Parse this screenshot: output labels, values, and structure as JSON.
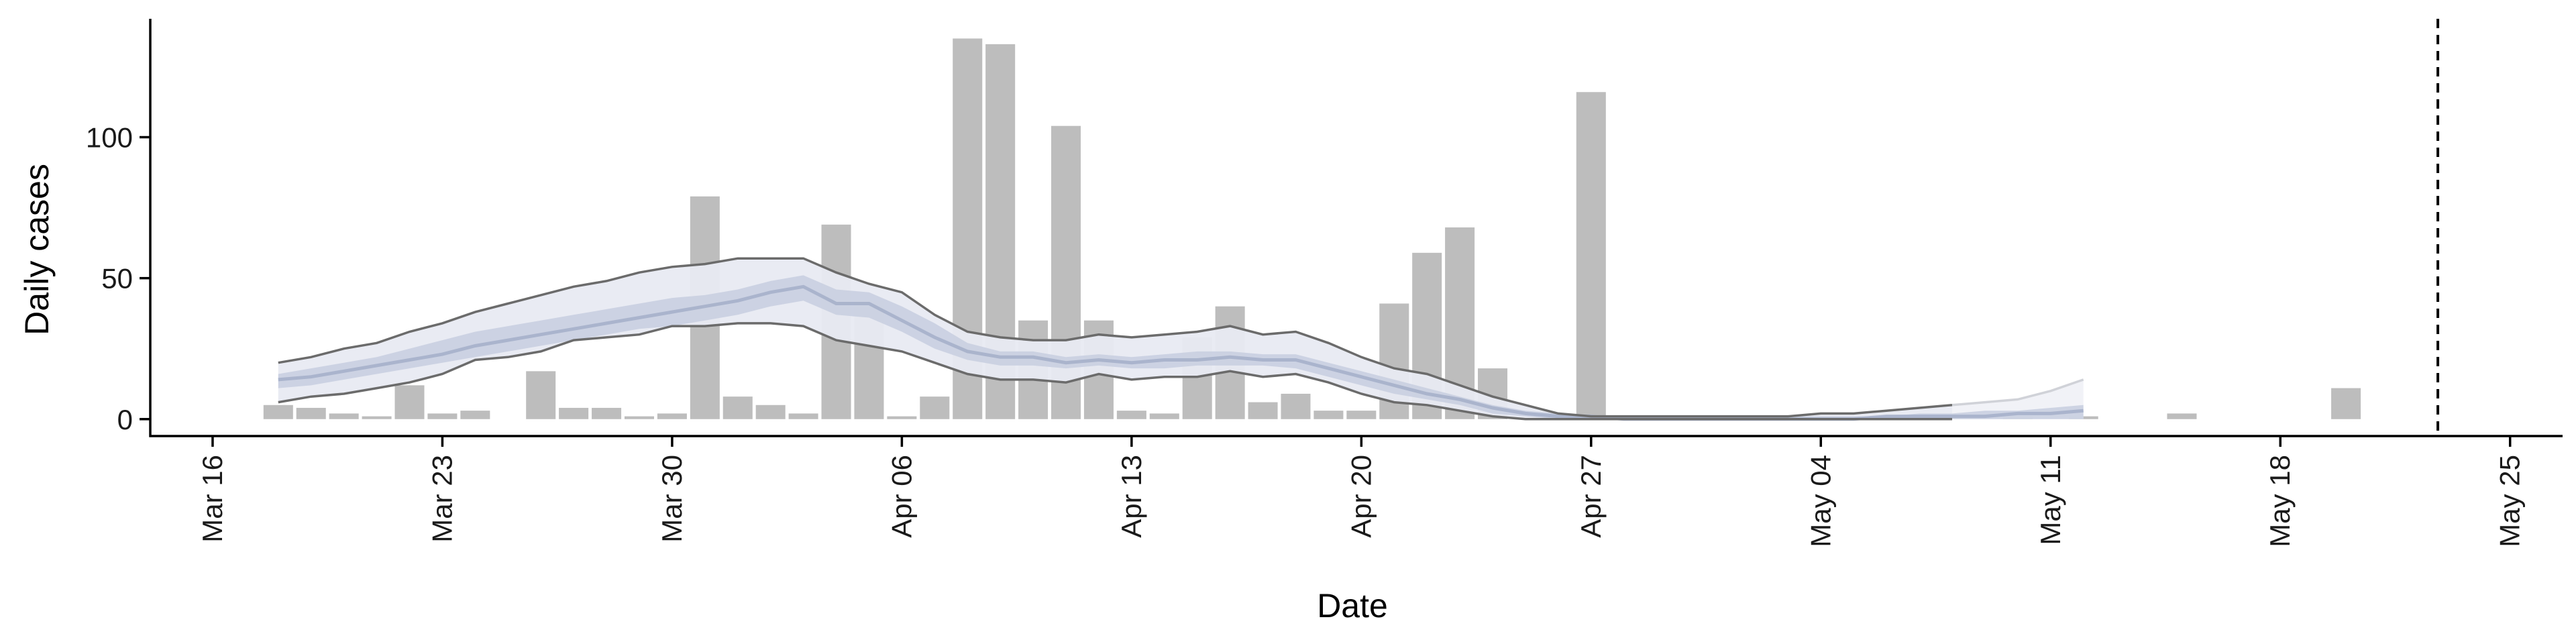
{
  "chart_data": {
    "type": "bar",
    "title": "",
    "xlabel": "Date",
    "ylabel": "Daily cases",
    "ylim": [
      -6,
      142
    ],
    "y_ticks": [
      0,
      50,
      100
    ],
    "x_start_date": "Mar 16",
    "x_ticks": [
      {
        "label": "Mar 16",
        "day": 0
      },
      {
        "label": "Mar 23",
        "day": 7
      },
      {
        "label": "Mar 30",
        "day": 14
      },
      {
        "label": "Apr 06",
        "day": 21
      },
      {
        "label": "Apr 13",
        "day": 28
      },
      {
        "label": "Apr 20",
        "day": 35
      },
      {
        "label": "Apr 27",
        "day": 42
      },
      {
        "label": "May 04",
        "day": 49
      },
      {
        "label": "May 11",
        "day": 56
      },
      {
        "label": "May 18",
        "day": 63
      },
      {
        "label": "May 25",
        "day": 70
      }
    ],
    "xlim": [
      -1.9,
      71.6
    ],
    "dashed_line_day": 67.8,
    "bars": [
      {
        "day": 2,
        "value": 5
      },
      {
        "day": 3,
        "value": 4
      },
      {
        "day": 4,
        "value": 2
      },
      {
        "day": 5,
        "value": 1
      },
      {
        "day": 6,
        "value": 12
      },
      {
        "day": 7,
        "value": 2
      },
      {
        "day": 8,
        "value": 3
      },
      {
        "day": 10,
        "value": 17
      },
      {
        "day": 11,
        "value": 4
      },
      {
        "day": 12,
        "value": 4
      },
      {
        "day": 13,
        "value": 1
      },
      {
        "day": 14,
        "value": 2
      },
      {
        "day": 15,
        "value": 79
      },
      {
        "day": 16,
        "value": 8
      },
      {
        "day": 17,
        "value": 5
      },
      {
        "day": 18,
        "value": 2
      },
      {
        "day": 19,
        "value": 69
      },
      {
        "day": 20,
        "value": 42
      },
      {
        "day": 21,
        "value": 1
      },
      {
        "day": 22,
        "value": 8
      },
      {
        "day": 23,
        "value": 135
      },
      {
        "day": 24,
        "value": 133
      },
      {
        "day": 25,
        "value": 35
      },
      {
        "day": 26,
        "value": 104
      },
      {
        "day": 27,
        "value": 35
      },
      {
        "day": 28,
        "value": 3
      },
      {
        "day": 29,
        "value": 2
      },
      {
        "day": 30,
        "value": 29
      },
      {
        "day": 31,
        "value": 40
      },
      {
        "day": 32,
        "value": 6
      },
      {
        "day": 33,
        "value": 9
      },
      {
        "day": 34,
        "value": 3
      },
      {
        "day": 35,
        "value": 3
      },
      {
        "day": 36,
        "value": 41
      },
      {
        "day": 37,
        "value": 59
      },
      {
        "day": 38,
        "value": 68
      },
      {
        "day": 39,
        "value": 18
      },
      {
        "day": 42,
        "value": 116
      },
      {
        "day": 46,
        "value": 1
      },
      {
        "day": 48,
        "value": 1
      },
      {
        "day": 49,
        "value": 1
      },
      {
        "day": 55,
        "value": 1
      },
      {
        "day": 57,
        "value": 1
      },
      {
        "day": 60,
        "value": 2
      },
      {
        "day": 65,
        "value": 11
      }
    ],
    "estimate_days": [
      2,
      3,
      4,
      5,
      6,
      7,
      8,
      9,
      10,
      11,
      12,
      13,
      14,
      15,
      16,
      17,
      18,
      19,
      20,
      21,
      22,
      23,
      24,
      25,
      26,
      27,
      28,
      29,
      30,
      31,
      32,
      33,
      34,
      35,
      36,
      37,
      38,
      39,
      40,
      41,
      42,
      43,
      44,
      45,
      46,
      47,
      48,
      49,
      50,
      51,
      52,
      53,
      54,
      55,
      56,
      57
    ],
    "outer_upper": [
      20,
      22,
      25,
      27,
      31,
      34,
      38,
      41,
      44,
      47,
      49,
      52,
      54,
      55,
      57,
      57,
      57,
      52,
      48,
      45,
      37,
      31,
      29,
      28,
      28,
      30,
      29,
      30,
      31,
      33,
      30,
      31,
      27,
      22,
      18,
      16,
      12,
      8,
      5,
      2,
      1,
      1,
      1,
      1,
      1,
      1,
      1,
      2,
      2,
      3,
      4,
      5,
      6,
      7,
      10,
      14
    ],
    "inner_upper": [
      16,
      18,
      20,
      22,
      25,
      28,
      31,
      33,
      35,
      37,
      39,
      41,
      43,
      44,
      46,
      49,
      51,
      46,
      45,
      40,
      34,
      27,
      24,
      24,
      22,
      23,
      22,
      23,
      24,
      24,
      23,
      23,
      20,
      17,
      14,
      11,
      8,
      5,
      3,
      2,
      1,
      1,
      1,
      1,
      1,
      1,
      1,
      1,
      1,
      1,
      2,
      2,
      3,
      3,
      4,
      5
    ],
    "median": [
      14,
      15,
      17,
      19,
      21,
      23,
      26,
      28,
      30,
      32,
      34,
      36,
      38,
      40,
      42,
      45,
      47,
      41,
      41,
      35,
      29,
      24,
      22,
      22,
      20,
      21,
      20,
      21,
      21,
      22,
      21,
      21,
      18,
      15,
      12,
      9,
      7,
      4,
      2,
      1,
      1,
      0,
      0,
      0,
      0,
      0,
      0,
      0,
      0,
      1,
      1,
      1,
      1,
      2,
      2,
      3
    ],
    "inner_lower": [
      11,
      12,
      14,
      16,
      18,
      20,
      22,
      24,
      26,
      28,
      30,
      32,
      33,
      35,
      37,
      40,
      42,
      37,
      36,
      31,
      25,
      21,
      19,
      19,
      18,
      19,
      18,
      18,
      19,
      19,
      19,
      18,
      15,
      12,
      9,
      7,
      5,
      2,
      1,
      0,
      0,
      0,
      0,
      0,
      0,
      0,
      0,
      0,
      0,
      0,
      0,
      0,
      0,
      0,
      0,
      0
    ],
    "outer_lower": [
      6,
      8,
      9,
      11,
      13,
      16,
      21,
      22,
      24,
      28,
      29,
      30,
      33,
      33,
      34,
      34,
      33,
      28,
      26,
      24,
      20,
      16,
      14,
      14,
      13,
      16,
      14,
      15,
      15,
      17,
      15,
      16,
      13,
      9,
      6,
      5,
      3,
      1,
      0,
      0,
      0,
      0,
      0,
      0,
      0,
      0,
      0,
      0,
      0,
      0,
      0,
      0,
      0,
      0,
      0,
      0
    ],
    "forecast_from_day": 53,
    "colors": {
      "bars": "#bdbdbd",
      "outer_band": "#e8eaf2",
      "inner_band": "#c7cedf",
      "median": "#a6b0ca",
      "bound_lines": "#6b6b6b",
      "forecast_band": "#f0f1f6",
      "axis": "#000000"
    }
  }
}
